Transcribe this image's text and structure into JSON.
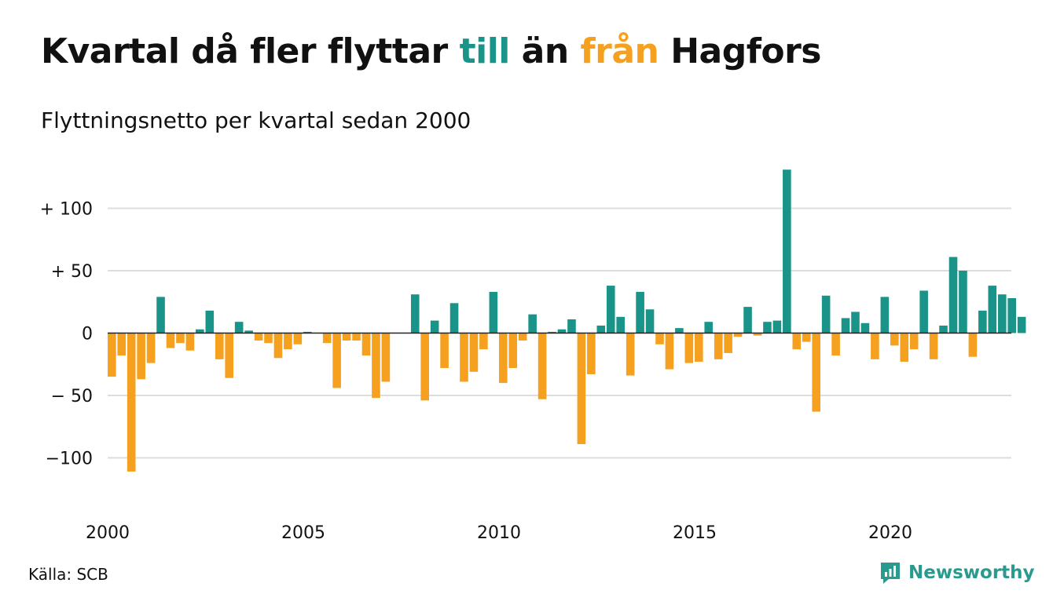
{
  "title": {
    "part1": "Kvartal då fler flyttar ",
    "till": "till",
    "part2": " än ",
    "fran": "från",
    "part3": " Hagfors"
  },
  "subtitle": "Flyttningsnetto per kvartal sedan 2000",
  "source": "Källa: SCB",
  "brand": "Newsworthy",
  "colors": {
    "positive": "#1a9488",
    "negative": "#f5a11f",
    "grid": "#dddddd",
    "brand": "#2a9a8e"
  },
  "chart_data": {
    "type": "bar",
    "start_year": 2000,
    "quarters_per_year": 4,
    "ylim": [
      -140,
      135
    ],
    "y_ticks": [
      {
        "value": 100,
        "label": "+ 100"
      },
      {
        "value": 50,
        "label": "+  50"
      },
      {
        "value": 0,
        "label": "0"
      },
      {
        "value": -50,
        "label": "− 50"
      },
      {
        "value": -100,
        "label": "−100"
      }
    ],
    "x_ticks": [
      "2000",
      "2005",
      "2010",
      "2015",
      "2020"
    ],
    "grid": true,
    "values": [
      -35,
      -18,
      -111,
      -37,
      -24,
      29,
      -12,
      -8,
      -14,
      3,
      18,
      -21,
      -36,
      9,
      2,
      -6,
      -8,
      -20,
      -13,
      -9,
      1,
      0,
      -8,
      -44,
      -6,
      -6,
      -18,
      -52,
      -39,
      0,
      0,
      31,
      -54,
      10,
      -28,
      24,
      -39,
      -31,
      -13,
      33,
      -40,
      -28,
      -6,
      15,
      -53,
      1,
      3,
      11,
      -89,
      -33,
      6,
      38,
      13,
      -34,
      33,
      19,
      -9,
      -29,
      4,
      -24,
      -23,
      9,
      -21,
      -16,
      -3,
      21,
      -2,
      9,
      10,
      131,
      -13,
      -7,
      -63,
      30,
      -18,
      12,
      17,
      8,
      -21,
      29,
      -10,
      -23,
      -13,
      34,
      -21,
      6,
      61,
      50,
      -19,
      18,
      38,
      31,
      28,
      13
    ]
  }
}
